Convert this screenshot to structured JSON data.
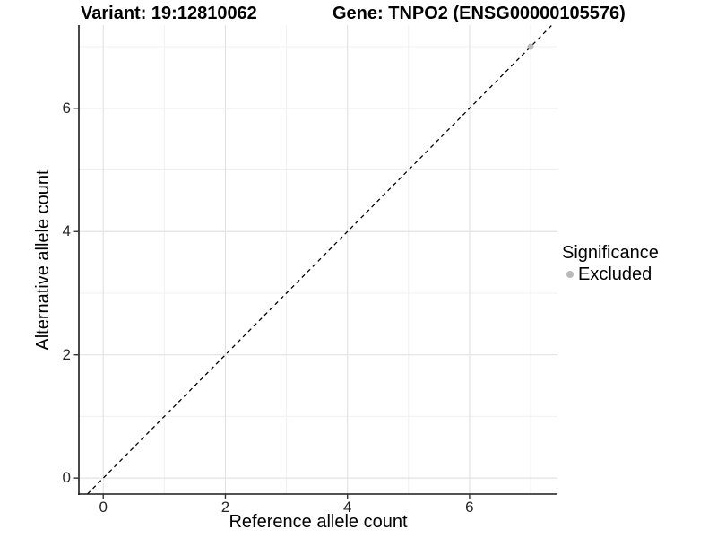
{
  "chart_data": {
    "type": "scatter",
    "titles": {
      "left": "Variant: 19:12810062",
      "right": "Gene: TNPO2 (ENSG00000105576)"
    },
    "xlabel": "Reference allele count",
    "ylabel": "Alternative allele count",
    "xlim": [
      -0.4,
      7.44
    ],
    "ylim": [
      -0.26,
      7.35
    ],
    "x_ticks": [
      0,
      2,
      4,
      6
    ],
    "y_ticks": [
      0,
      2,
      4,
      6
    ],
    "x_minor_ticks": [
      1,
      3,
      5,
      7
    ],
    "y_minor_ticks": [
      1,
      3,
      5,
      7
    ],
    "grid": "major+minor",
    "series": [
      {
        "name": "Excluded",
        "color": "#b9b9b9",
        "marker": "circle",
        "points": [
          {
            "x": 7,
            "y": 7
          }
        ]
      }
    ],
    "reference_line": {
      "type": "identity (y = x)",
      "style": "dashed",
      "color": "#000000"
    },
    "legend": {
      "title": "Significance",
      "position": "right",
      "items": [
        {
          "label": "Excluded",
          "color": "#b9b9b9"
        }
      ]
    },
    "style": {
      "panel_background": "#ffffff",
      "grid_major_color": "#e3e3e3",
      "grid_minor_color": "#f0f0f0",
      "axis_line_color": "#1a1a1a",
      "tick_mark_color": "#333333",
      "tick_label_color": "#262626"
    }
  }
}
